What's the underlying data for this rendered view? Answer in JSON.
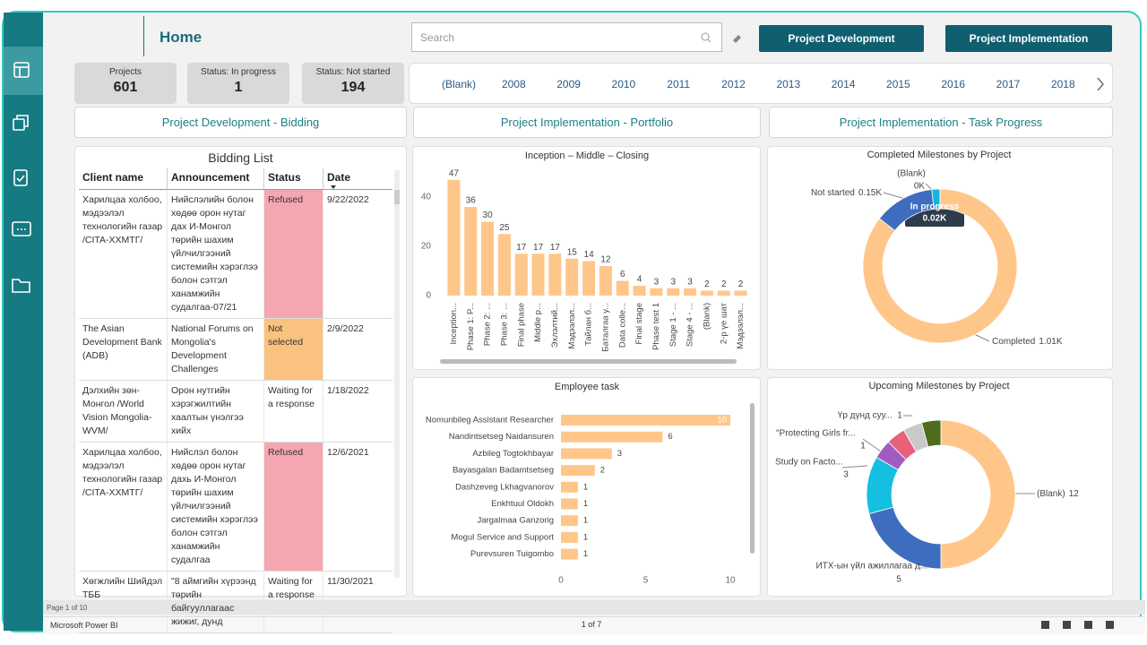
{
  "header": {
    "title": "Home",
    "search_placeholder": "Search",
    "buttons": [
      "Project Development",
      "Project Implementation"
    ]
  },
  "kpis": [
    {
      "label": "Projects",
      "value": 601
    },
    {
      "label": "Status: In progress",
      "value": 1
    },
    {
      "label": "Status: Not started",
      "value": 194
    }
  ],
  "years": [
    "(Blank)",
    "2008",
    "2009",
    "2010",
    "2011",
    "2012",
    "2013",
    "2014",
    "2015",
    "2016",
    "2017",
    "2018"
  ],
  "tabs": [
    "Project Development - Bidding",
    "Project Implementation - Portfolio",
    "Project Implementation - Task Progress"
  ],
  "bidding": {
    "title": "Bidding List",
    "columns": [
      "Client name",
      "Announcement",
      "Status",
      "Date"
    ],
    "status_colors": {
      "Refused": "#f4a7b1",
      "Not selected": "#f9c27f"
    },
    "rows": [
      [
        "Харилцаа холбоо, мэдээлэл технологийн газар /CITA-ХХМТГ/",
        "Нийслэлийн болон хөдөө орон нутаг дах И-Монгол төрийн шахим үйлчилгээний системийн хэрэглээ болон сэтгэл ханамжийн судалгаа-07/21",
        "Refused",
        "9/22/2022"
      ],
      [
        "The Asian Development Bank (ADB)",
        "National Forums on Mongolia's Development Challenges",
        "Not selected",
        "2/9/2022"
      ],
      [
        "Дэлхийн зөн-Монгол /World Vision Mongolia-WVM/",
        "Орон нутгийн хэрэгжилтийн хаалтын үнэлгээ хийх",
        "Waiting for a response",
        "1/18/2022"
      ],
      [
        "Харилцаа холбоо, мэдээлэл технологийн газар /CITA-ХХМТГ/",
        "Нийслэл болон хөдөө орон нутаг дахь И-Монгол төрийн шахим үйлчилгээний системийн хэрэглээ болон сэтгэл ханамжийн судалгаа",
        "Refused",
        "12/6/2021"
      ],
      [
        "Хөгжлийн Шийдэл ТББ",
        "\"8 аймгийн хүрээнд төрийн байгууллагаас жижиг, дунд",
        "Waiting for a response",
        "11/30/2021"
      ]
    ]
  },
  "phase_chart": {
    "type": "bar",
    "title": "Inception – Middle – Closing",
    "categories": [
      "Inception...",
      "Phase 1: P...",
      "Phase 2: ...",
      "Phase 3: ...",
      "Final phase",
      "Middle p...",
      "Эхлэлтий...",
      "Мэдээлэл...",
      "Тайлан б...",
      "Баталгаа у...",
      "Data colle...",
      "Final stage",
      "Phase test 1",
      "Stage 1 - ...",
      "Stage 4 - ...",
      "(Blank)",
      "2-р үе шат",
      "Мэдээлэл..."
    ],
    "values": [
      47,
      36,
      30,
      25,
      17,
      17,
      17,
      15,
      14,
      12,
      6,
      4,
      3,
      3,
      3,
      2,
      2,
      2
    ],
    "color": "#ffc68a",
    "ylim": [
      0,
      50
    ],
    "yticks": [
      0,
      20,
      40
    ]
  },
  "employee_chart": {
    "type": "barh",
    "title": "Employee task",
    "categories": [
      "Nomunbileg Assistant Researcher",
      "Nandintsetseg Naidansuren",
      "Azbileg Togtokhbayar",
      "Bayasgalan Badamtsetseg",
      "Dashzeveg Lkhagvanorov",
      "Enkhtuul Oldokh",
      "Jargalmaa Ganzorig",
      "Mogul Service and Support",
      "Purevsuren Tuigombo"
    ],
    "values": [
      10,
      6,
      3,
      2,
      1,
      1,
      1,
      1,
      1
    ],
    "color": "#ffc68a",
    "xlim": [
      0,
      10
    ],
    "xticks": [
      0,
      5,
      10
    ]
  },
  "completed_chart": {
    "type": "donut",
    "title": "Completed Milestones by Project",
    "categories": [
      "Completed",
      "Not started",
      "In progress",
      "(Blank)"
    ],
    "values": [
      1.01,
      0.15,
      0.02,
      0
    ],
    "value_labels": [
      "1.01K",
      "0.15K",
      "0.02K",
      "0K"
    ],
    "colors": [
      "#ffc68a",
      "#3e6dbf",
      "#14b4e0",
      "#1f4e8c"
    ]
  },
  "upcoming_chart": {
    "type": "donut",
    "title": "Upcoming Milestones by Project",
    "categories": [
      "(Blank)",
      "ИТХ-ын үйл ажиллагаа д...",
      "Study on Facto...",
      "\"Protecting Girls fr...",
      null,
      "Үр дүнд суу...",
      null
    ],
    "values": [
      12,
      5,
      3,
      1,
      1,
      1,
      1
    ],
    "colors": [
      "#ffc68a",
      "#3e6dbf",
      "#14bfe0",
      "#a35bc4",
      "#e8607a",
      "#c9c9c9",
      "#4f6b1e"
    ]
  },
  "footer": {
    "page": "Page 1 of 10",
    "app": "Microsoft Power BI",
    "pager": "1 of 7"
  }
}
